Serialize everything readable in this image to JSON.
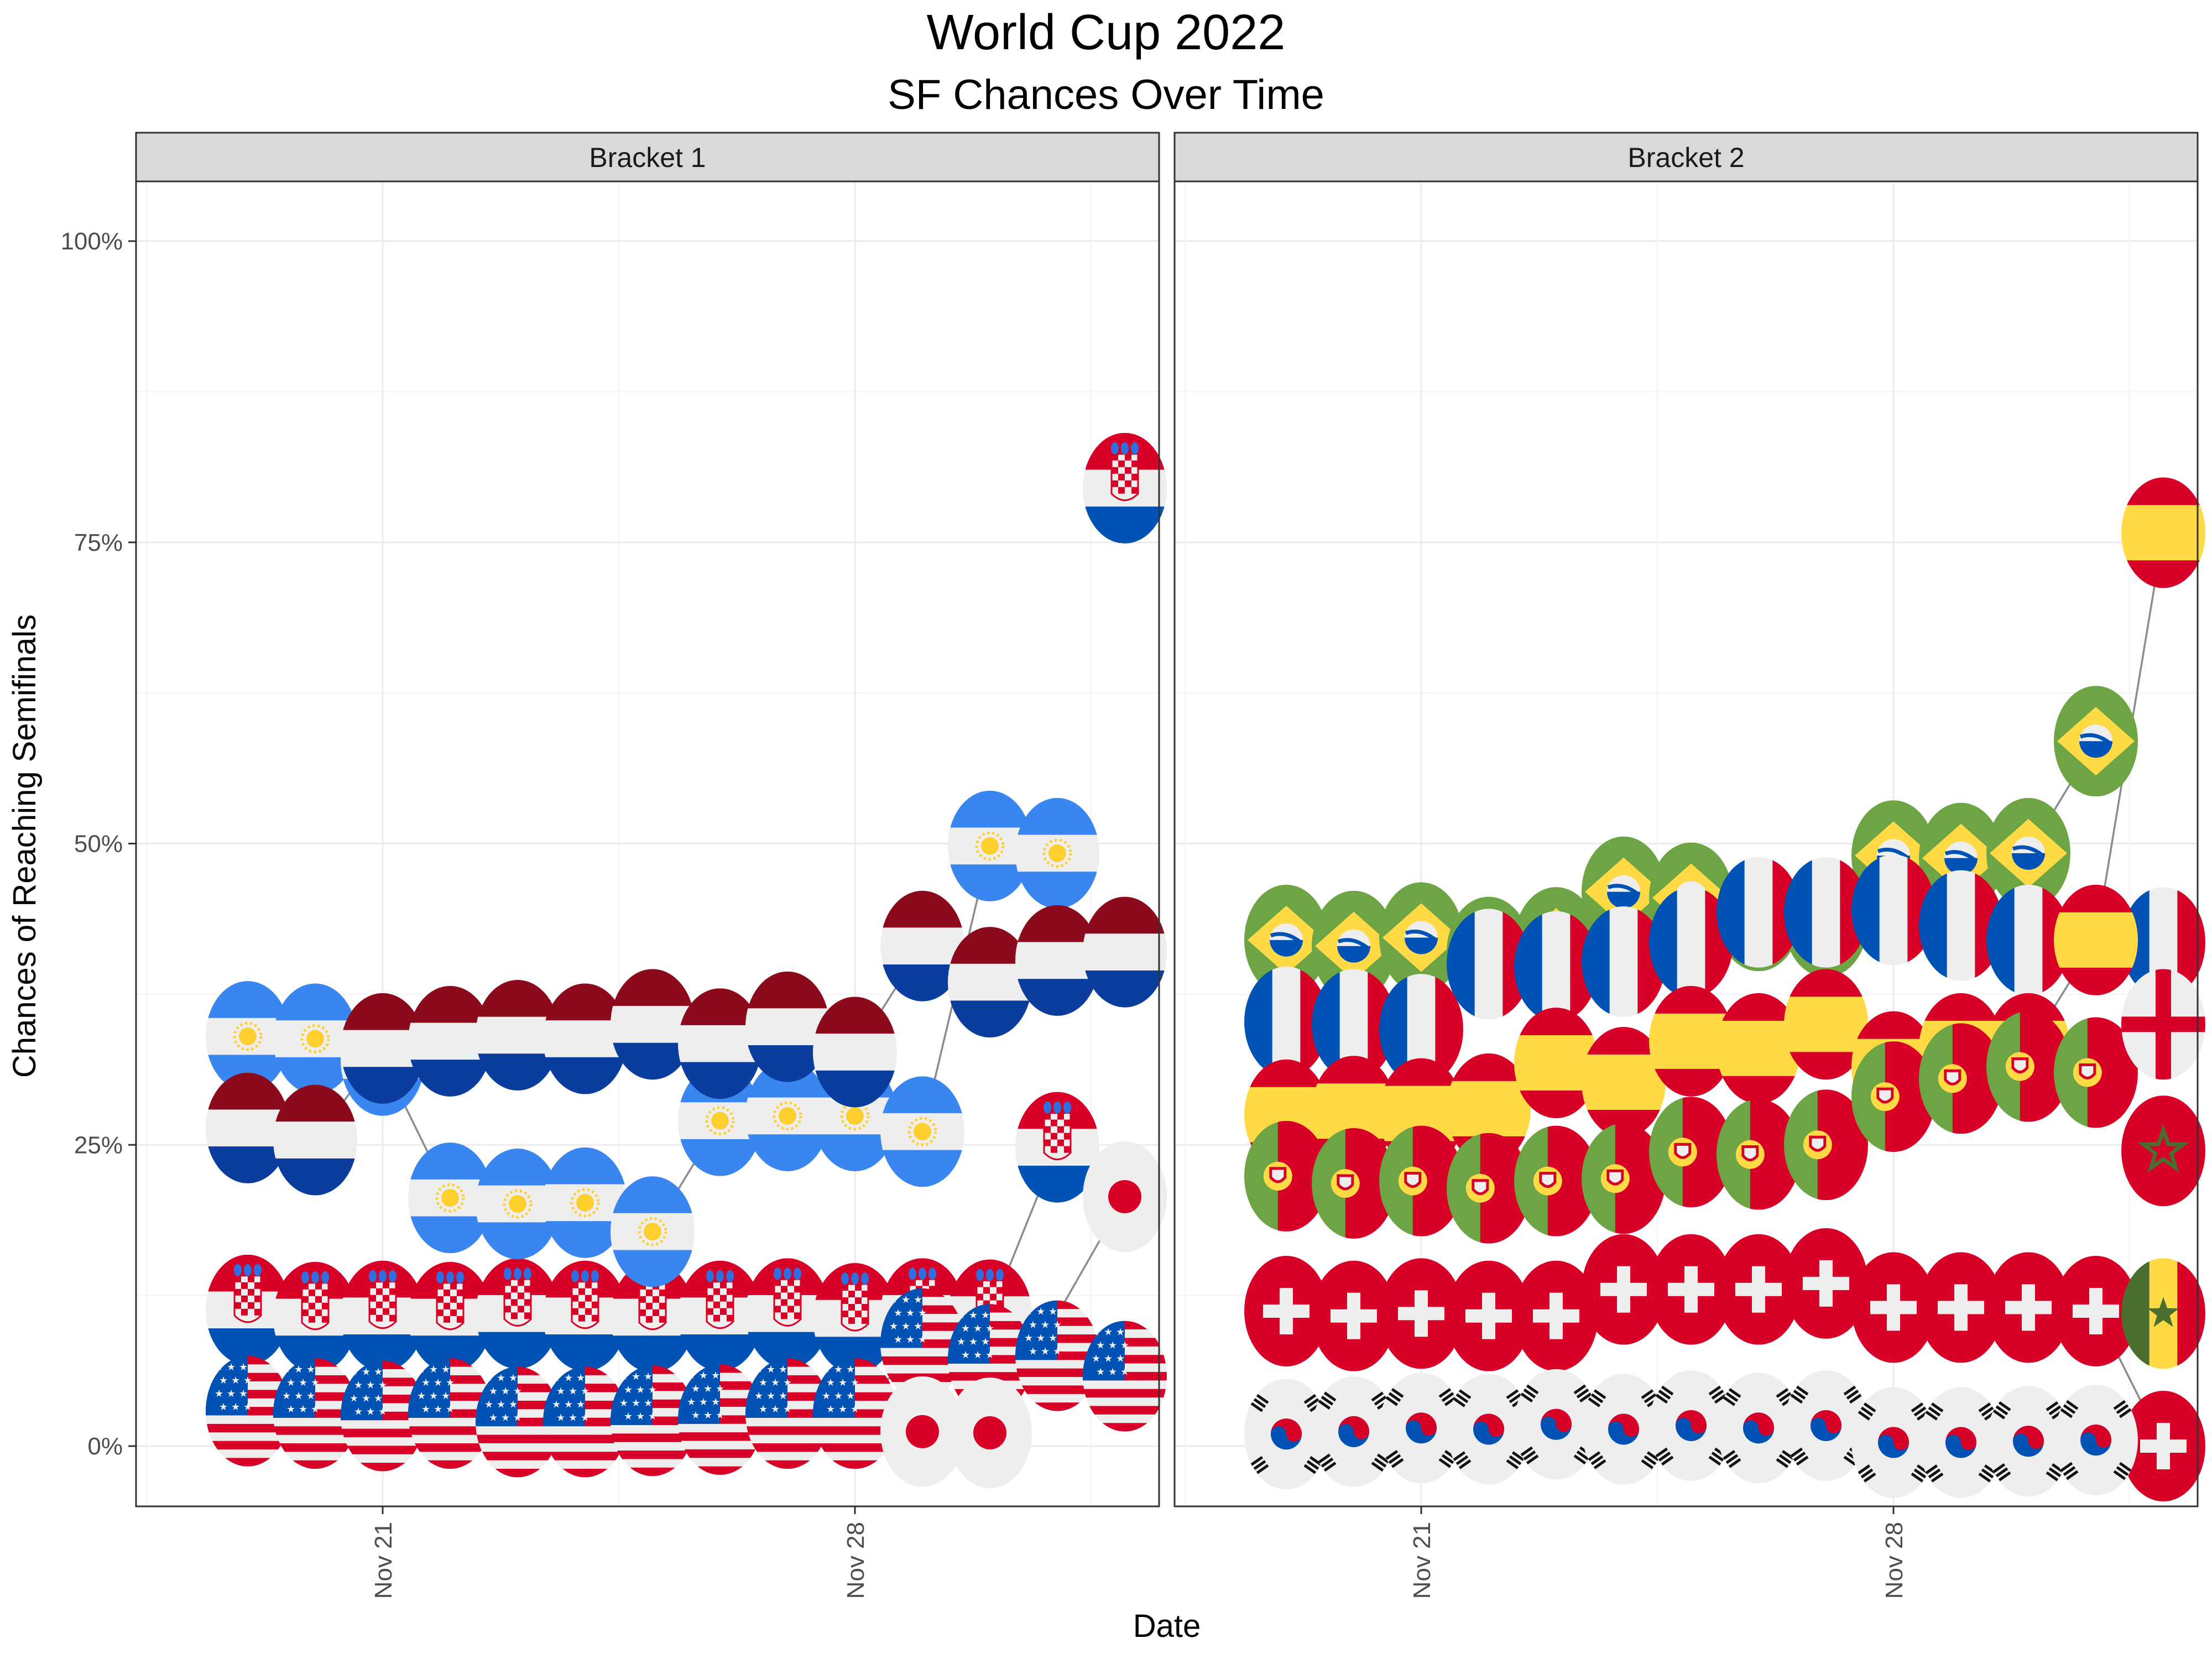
{
  "chart_data": {
    "type": "line",
    "title": "World Cup 2022",
    "subtitle": "SF Chances Over Time",
    "xlabel": "Date",
    "ylabel": "Chances of Reaching Semifinals",
    "x_ticks": [
      "Nov 21",
      "Nov 28"
    ],
    "y_ticks": [
      "0%",
      "25%",
      "50%",
      "75%",
      "100%"
    ],
    "ylim": [
      -0.05,
      1.05
    ],
    "x_range_dates": [
      "2022-11-18",
      "2022-12-02"
    ],
    "grid": true,
    "marker": "country flag",
    "panels": [
      {
        "name": "Bracket 1",
        "series": [
          {
            "name": "Croatia",
            "flag": "croatia",
            "x": [
              "2022-11-19",
              "2022-11-20",
              "2022-11-21",
              "2022-11-22",
              "2022-11-23",
              "2022-11-24",
              "2022-11-25",
              "2022-11-26",
              "2022-11-27",
              "2022-11-28",
              "2022-11-29",
              "2022-11-30",
              "2022-12-01"
            ],
            "y": [
              0.113,
              0.107,
              0.108,
              0.107,
              0.11,
              0.108,
              0.107,
              0.108,
              0.11,
              0.106,
              0.11,
              0.109,
              0.248
            ]
          },
          {
            "name": "Argentina",
            "flag": "argentina",
            "x": [
              "2022-11-19",
              "2022-11-20",
              "2022-11-21",
              "2022-11-22",
              "2022-11-23",
              "2022-11-24",
              "2022-11-25",
              "2022-11-26",
              "2022-11-27",
              "2022-11-28",
              "2022-11-29",
              "2022-11-30",
              "2022-12-01"
            ],
            "y": [
              0.34,
              0.338,
              0.32,
              0.206,
              0.201,
              0.202,
              0.178,
              0.27,
              0.274,
              0.274,
              0.261,
              0.498,
              0.492
            ]
          },
          {
            "name": "Netherlands",
            "flag": "netherlands",
            "x": [
              "2022-11-19",
              "2022-11-20",
              "2022-11-21",
              "2022-11-22",
              "2022-11-23",
              "2022-11-24",
              "2022-11-25",
              "2022-11-26",
              "2022-11-27",
              "2022-11-28",
              "2022-11-29",
              "2022-11-30",
              "2022-12-01",
              "2022-12-02"
            ],
            "y": [
              0.264,
              0.254,
              0.33,
              0.336,
              0.341,
              0.338,
              0.35,
              0.334,
              0.348,
              0.327,
              0.415,
              0.385,
              0.403,
              0.41
            ]
          },
          {
            "name": "USA",
            "flag": "usa",
            "x": [
              "2022-11-19",
              "2022-11-20",
              "2022-11-21",
              "2022-11-22",
              "2022-11-23",
              "2022-11-24",
              "2022-11-25",
              "2022-11-26",
              "2022-11-27",
              "2022-11-28",
              "2022-11-29",
              "2022-11-30",
              "2022-12-01",
              "2022-12-02"
            ],
            "y": [
              0.029,
              0.027,
              0.025,
              0.027,
              0.02,
              0.02,
              0.021,
              0.022,
              0.027,
              0.027,
              0.085,
              0.072,
              0.075,
              0.058
            ]
          },
          {
            "name": "Japan",
            "flag": "japan",
            "x": [
              "2022-11-29",
              "2022-11-30",
              "2022-12-02"
            ],
            "y": [
              0.012,
              0.011,
              0.207
            ]
          },
          {
            "name": "Croatia (final)",
            "flag": "croatia",
            "x": [
              "2022-12-02"
            ],
            "y": [
              0.795
            ]
          }
        ]
      },
      {
        "name": "Bracket 2",
        "series": [
          {
            "name": "Brazil",
            "flag": "brazil",
            "x": [
              "2022-11-19",
              "2022-11-20",
              "2022-11-21",
              "2022-11-22",
              "2022-11-23",
              "2022-11-24",
              "2022-11-25",
              "2022-11-26",
              "2022-11-27",
              "2022-11-28",
              "2022-11-29",
              "2022-11-30",
              "2022-12-01"
            ],
            "y": [
              0.42,
              0.415,
              0.422,
              0.41,
              0.418,
              0.46,
              0.455,
              0.44,
              0.435,
              0.49,
              0.488,
              0.492,
              0.585
            ]
          },
          {
            "name": "France",
            "flag": "france",
            "x": [
              "2022-11-19",
              "2022-11-20",
              "2022-11-21",
              "2022-11-22",
              "2022-11-23",
              "2022-11-24",
              "2022-11-25",
              "2022-11-26",
              "2022-11-27",
              "2022-11-28",
              "2022-11-29",
              "2022-11-30",
              "2022-12-02"
            ],
            "y": [
              0.352,
              0.35,
              0.346,
              0.4,
              0.398,
              0.402,
              0.418,
              0.443,
              0.443,
              0.445,
              0.432,
              0.42,
              0.418
            ]
          },
          {
            "name": "Spain",
            "flag": "spain",
            "x": [
              "2022-11-19",
              "2022-11-20",
              "2022-11-21",
              "2022-11-22",
              "2022-11-23",
              "2022-11-24",
              "2022-11-25",
              "2022-11-26",
              "2022-11-27",
              "2022-11-28",
              "2022-11-29",
              "2022-11-30",
              "2022-12-01",
              "2022-12-02"
            ],
            "y": [
              0.275,
              0.278,
              0.276,
              0.28,
              0.318,
              0.302,
              0.336,
              0.33,
              0.35,
              0.315,
              0.33,
              0.33,
              0.42,
              0.758
            ]
          },
          {
            "name": "Portugal",
            "flag": "portugal",
            "x": [
              "2022-11-19",
              "2022-11-20",
              "2022-11-21",
              "2022-11-22",
              "2022-11-23",
              "2022-11-24",
              "2022-11-25",
              "2022-11-26",
              "2022-11-27",
              "2022-11-28",
              "2022-11-29",
              "2022-11-30",
              "2022-12-01"
            ],
            "y": [
              0.224,
              0.218,
              0.22,
              0.214,
              0.22,
              0.222,
              0.244,
              0.242,
              0.25,
              0.29,
              0.305,
              0.315,
              0.31
            ]
          },
          {
            "name": "England",
            "flag": "england",
            "x": [
              "2022-12-02"
            ],
            "y": [
              0.35
            ]
          },
          {
            "name": "Morocco",
            "flag": "morocco",
            "x": [
              "2022-12-02"
            ],
            "y": [
              0.245
            ]
          },
          {
            "name": "Switzerland",
            "flag": "switzerland",
            "x": [
              "2022-11-19",
              "2022-11-20",
              "2022-11-21",
              "2022-11-22",
              "2022-11-23",
              "2022-11-24",
              "2022-11-25",
              "2022-11-26",
              "2022-11-27",
              "2022-11-28",
              "2022-11-29",
              "2022-11-30",
              "2022-12-01",
              "2022-12-02"
            ],
            "y": [
              0.112,
              0.108,
              0.11,
              0.108,
              0.108,
              0.13,
              0.13,
              0.13,
              0.135,
              0.115,
              0.115,
              0.115,
              0.112,
              0.0
            ]
          },
          {
            "name": "Senegal",
            "flag": "senegal",
            "x": [
              "2022-12-02"
            ],
            "y": [
              0.11
            ]
          },
          {
            "name": "South Korea",
            "flag": "south-korea",
            "x": [
              "2022-11-19",
              "2022-11-20",
              "2022-11-21",
              "2022-11-22",
              "2022-11-23",
              "2022-11-24",
              "2022-11-25",
              "2022-11-26",
              "2022-11-27",
              "2022-11-28",
              "2022-11-29",
              "2022-11-30",
              "2022-12-01"
            ],
            "y": [
              0.01,
              0.012,
              0.015,
              0.014,
              0.018,
              0.014,
              0.017,
              0.015,
              0.017,
              0.003,
              0.003,
              0.004,
              0.005
            ]
          }
        ]
      }
    ]
  },
  "colors": {
    "line": "#8c8c8c",
    "grid": "#ebebeb",
    "strip": "#d9d9d9",
    "axis_text": "#4d4d4d"
  }
}
